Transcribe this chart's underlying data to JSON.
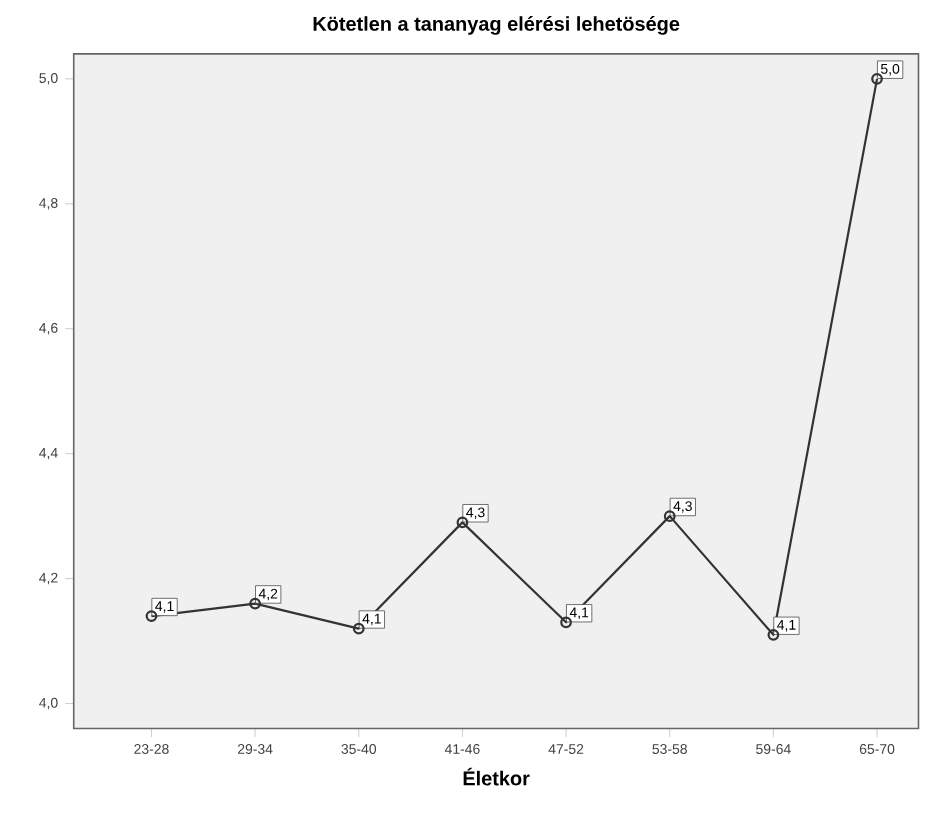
{
  "chart_data": {
    "type": "line",
    "title": "Kötetlen a tananyag elérési lehetösége",
    "xlabel": "Életkor",
    "categories": [
      "23-28",
      "29-34",
      "35-40",
      "41-46",
      "47-52",
      "53-58",
      "59-64",
      "65-70"
    ],
    "values": [
      4.14,
      4.16,
      4.12,
      4.29,
      4.13,
      4.3,
      4.11,
      5.0
    ],
    "value_labels": [
      "4,1",
      "4,2",
      "4,1",
      "4,3",
      "4,1",
      "4,3",
      "4,1",
      "5,0"
    ],
    "color": "#333333",
    "marker": "circle",
    "line_style": "solid",
    "grid": false,
    "ylim": [
      3.96,
      5.04
    ],
    "yticks": [
      {
        "value": 4.0,
        "label": "4,0"
      },
      {
        "value": 4.2,
        "label": "4,2"
      },
      {
        "value": 4.4,
        "label": "4,4"
      },
      {
        "value": 4.6,
        "label": "4,6"
      },
      {
        "value": 4.8,
        "label": "4,8"
      },
      {
        "value": 5.0,
        "label": "5,0"
      }
    ]
  }
}
